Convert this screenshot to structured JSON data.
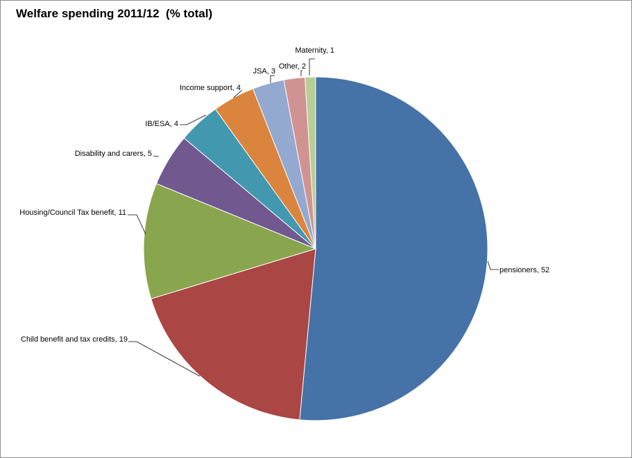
{
  "chart_data": {
    "type": "pie",
    "title": "Welfare spending 2011/12  (% total)",
    "slices": [
      {
        "label": "pensioners",
        "value": 52,
        "color": "#4572A7",
        "label_text": "pensioners, 52"
      },
      {
        "label": "Child benefit and tax credits",
        "value": 19,
        "color": "#AA4643",
        "label_text": "Child benefit and tax credits, 19"
      },
      {
        "label": "Housing/Council Tax benefit",
        "value": 11,
        "color": "#89A54E",
        "label_text": "Housing/Council Tax benefit, 11"
      },
      {
        "label": "Disability and carers",
        "value": 5,
        "color": "#71588F",
        "label_text": "Disability and carers, 5"
      },
      {
        "label": "IB/ESA",
        "value": 4,
        "color": "#4198AF",
        "label_text": "IB/ESA, 4"
      },
      {
        "label": "Income support",
        "value": 4,
        "color": "#DB843D",
        "label_text": "Income support, 4"
      },
      {
        "label": "JSA",
        "value": 3,
        "color": "#93A9CF",
        "label_text": "JSA, 3"
      },
      {
        "label": "Other",
        "value": 2,
        "color": "#D19392",
        "label_text": "Other, 2"
      },
      {
        "label": "Maternity",
        "value": 1,
        "color": "#B9CD96",
        "label_text": "Maternity, 1"
      }
    ],
    "start_angle_deg": 0,
    "direction": "clockwise"
  }
}
